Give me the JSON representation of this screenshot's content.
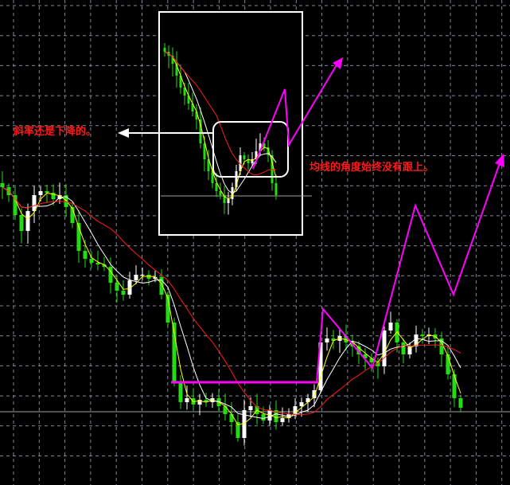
{
  "annotations": {
    "slope_note": "斜率还是下降的。",
    "ma_note": "均线的角度始终没有跟上。"
  },
  "colors": {
    "background": "#000000",
    "grid": "#7f8a99",
    "bull_candle": "#ffffff",
    "bear_candle": "#22dd11",
    "ma_fast": "#ffff00",
    "ma_mid": "#ffffff",
    "ma_slow": "#ff1a1a",
    "annotation_line": "#ff00ff",
    "note_text": "#ff1a1a"
  },
  "chart_data": {
    "type": "candlestick",
    "title": "",
    "xlabel": "",
    "ylabel": "",
    "grid": true,
    "main_closes": [
      365,
      355,
      330,
      310,
      335,
      355,
      360,
      358,
      350,
      355,
      340,
      320,
      285,
      275,
      270,
      268,
      265,
      245,
      235,
      230,
      248,
      255,
      255,
      250,
      252,
      230,
      195,
      120,
      95,
      100,
      92,
      98,
      95,
      100,
      90,
      80,
      70,
      50,
      85,
      90,
      80,
      72,
      85,
      70,
      75,
      80,
      90,
      95,
      100,
      110,
      170,
      175,
      172,
      178,
      170,
      165,
      155,
      150,
      145,
      140,
      185,
      195,
      170,
      155,
      165,
      180,
      178,
      180,
      175,
      155,
      130,
      100,
      88
    ],
    "inset_closes": [
      535,
      530,
      520,
      505,
      490,
      480,
      470,
      460,
      450,
      420,
      400,
      385,
      370,
      360,
      355,
      345,
      350,
      365,
      385,
      405,
      400,
      395,
      400,
      410,
      420,
      415,
      405,
      370,
      355
    ],
    "moving_averages": [
      "ma_fast",
      "ma_mid",
      "ma_slow"
    ]
  }
}
